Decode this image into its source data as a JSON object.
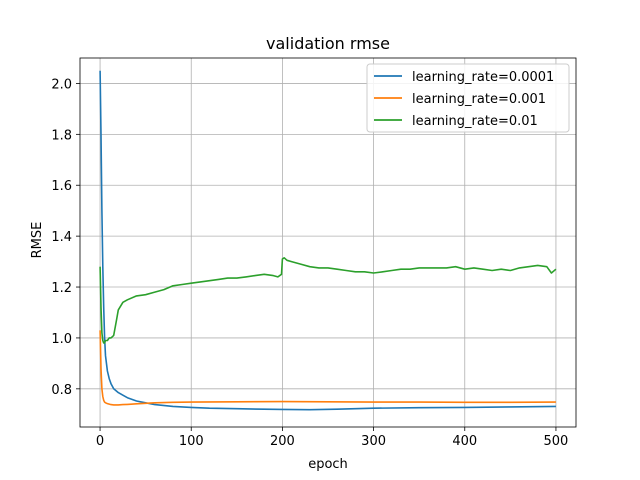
{
  "chart_data": {
    "type": "line",
    "title": "validation rmse",
    "xlabel": "epoch",
    "ylabel": "RMSE",
    "xlim": [
      -22,
      522
    ],
    "ylim": [
      0.65,
      2.1
    ],
    "xticks": [
      0,
      100,
      200,
      300,
      400,
      500
    ],
    "yticks": [
      0.8,
      1.0,
      1.2,
      1.4,
      1.6,
      1.8,
      2.0
    ],
    "xtick_labels": [
      "0",
      "100",
      "200",
      "300",
      "400",
      "500"
    ],
    "ytick_labels": [
      "0.8",
      "1.0",
      "1.2",
      "1.4",
      "1.6",
      "1.8",
      "2.0"
    ],
    "grid": true,
    "legend_position": "top-right",
    "series": [
      {
        "name": "learning_rate=0.0001",
        "color": "#1f77b4",
        "x": [
          0,
          1,
          2,
          3,
          4,
          5,
          6,
          8,
          10,
          12,
          15,
          20,
          25,
          30,
          40,
          50,
          60,
          80,
          100,
          120,
          150,
          180,
          200,
          230,
          260,
          300,
          350,
          400,
          450,
          500
        ],
        "y": [
          2.05,
          1.8,
          1.5,
          1.28,
          1.12,
          1.0,
          0.93,
          0.87,
          0.84,
          0.82,
          0.8,
          0.785,
          0.775,
          0.765,
          0.752,
          0.745,
          0.738,
          0.731,
          0.727,
          0.724,
          0.722,
          0.72,
          0.719,
          0.718,
          0.72,
          0.724,
          0.726,
          0.727,
          0.729,
          0.731
        ]
      },
      {
        "name": "learning_rate=0.001",
        "color": "#ff7f0e",
        "x": [
          0,
          1,
          2,
          3,
          4,
          5,
          6,
          8,
          10,
          12,
          15,
          20,
          25,
          30,
          40,
          50,
          60,
          80,
          100,
          150,
          200,
          250,
          300,
          350,
          400,
          450,
          500
        ],
        "y": [
          1.03,
          0.88,
          0.8,
          0.77,
          0.755,
          0.748,
          0.745,
          0.742,
          0.74,
          0.738,
          0.737,
          0.737,
          0.738,
          0.739,
          0.741,
          0.743,
          0.745,
          0.747,
          0.748,
          0.749,
          0.75,
          0.749,
          0.748,
          0.748,
          0.747,
          0.747,
          0.748
        ]
      },
      {
        "name": "learning_rate=0.01",
        "color": "#2ca02c",
        "x": [
          0,
          1,
          2,
          3,
          4,
          5,
          6,
          8,
          10,
          12,
          15,
          18,
          20,
          25,
          30,
          40,
          50,
          60,
          70,
          80,
          90,
          100,
          110,
          120,
          130,
          140,
          150,
          160,
          170,
          180,
          190,
          195,
          199,
          200,
          202,
          205,
          210,
          220,
          230,
          240,
          250,
          260,
          270,
          280,
          290,
          300,
          310,
          320,
          330,
          340,
          350,
          360,
          370,
          380,
          390,
          400,
          410,
          420,
          430,
          440,
          450,
          460,
          470,
          480,
          490,
          495,
          500
        ],
        "y": [
          1.28,
          1.12,
          1.02,
          0.99,
          0.98,
          0.98,
          0.99,
          0.99,
          1.0,
          1.0,
          1.01,
          1.07,
          1.11,
          1.14,
          1.15,
          1.165,
          1.17,
          1.18,
          1.19,
          1.205,
          1.21,
          1.215,
          1.22,
          1.225,
          1.23,
          1.235,
          1.235,
          1.24,
          1.245,
          1.25,
          1.245,
          1.24,
          1.25,
          1.31,
          1.315,
          1.305,
          1.3,
          1.29,
          1.28,
          1.275,
          1.275,
          1.27,
          1.265,
          1.26,
          1.26,
          1.255,
          1.26,
          1.265,
          1.27,
          1.27,
          1.275,
          1.275,
          1.275,
          1.275,
          1.28,
          1.27,
          1.275,
          1.27,
          1.265,
          1.27,
          1.265,
          1.275,
          1.28,
          1.285,
          1.28,
          1.255,
          1.27
        ]
      }
    ]
  }
}
